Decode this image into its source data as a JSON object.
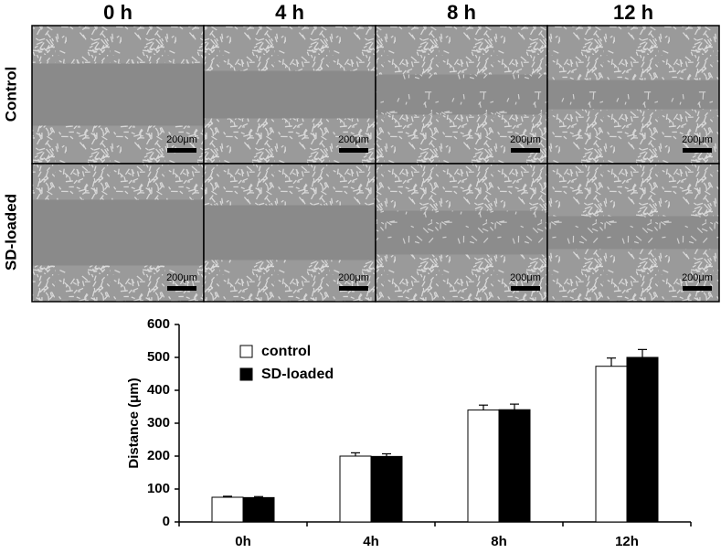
{
  "images": {
    "columns": [
      "0 h",
      "4 h",
      "8 h",
      "12 h"
    ],
    "rows": [
      "Control",
      "SD-loaded"
    ],
    "scale_bars": [
      "200μm",
      "200μm",
      "200μm",
      "200μm",
      "200μm",
      "200μm",
      "200μm",
      "200μm"
    ]
  },
  "chart_data": {
    "type": "bar",
    "y_label": "Distance (μm)",
    "categories": [
      "0h",
      "4h",
      "8h",
      "12h"
    ],
    "series": [
      {
        "name": "control",
        "color": "#ffffff",
        "values": [
          75,
          200,
          340,
          473
        ],
        "errors": [
          3,
          10,
          15,
          25
        ]
      },
      {
        "name": "SD-loaded",
        "color": "#000000",
        "values": [
          74,
          199,
          341,
          500
        ],
        "errors": [
          3,
          8,
          17,
          24
        ]
      }
    ],
    "ylim": [
      0,
      600
    ],
    "yticks": [
      0,
      100,
      200,
      300,
      400,
      500,
      600
    ],
    "grid": false
  }
}
